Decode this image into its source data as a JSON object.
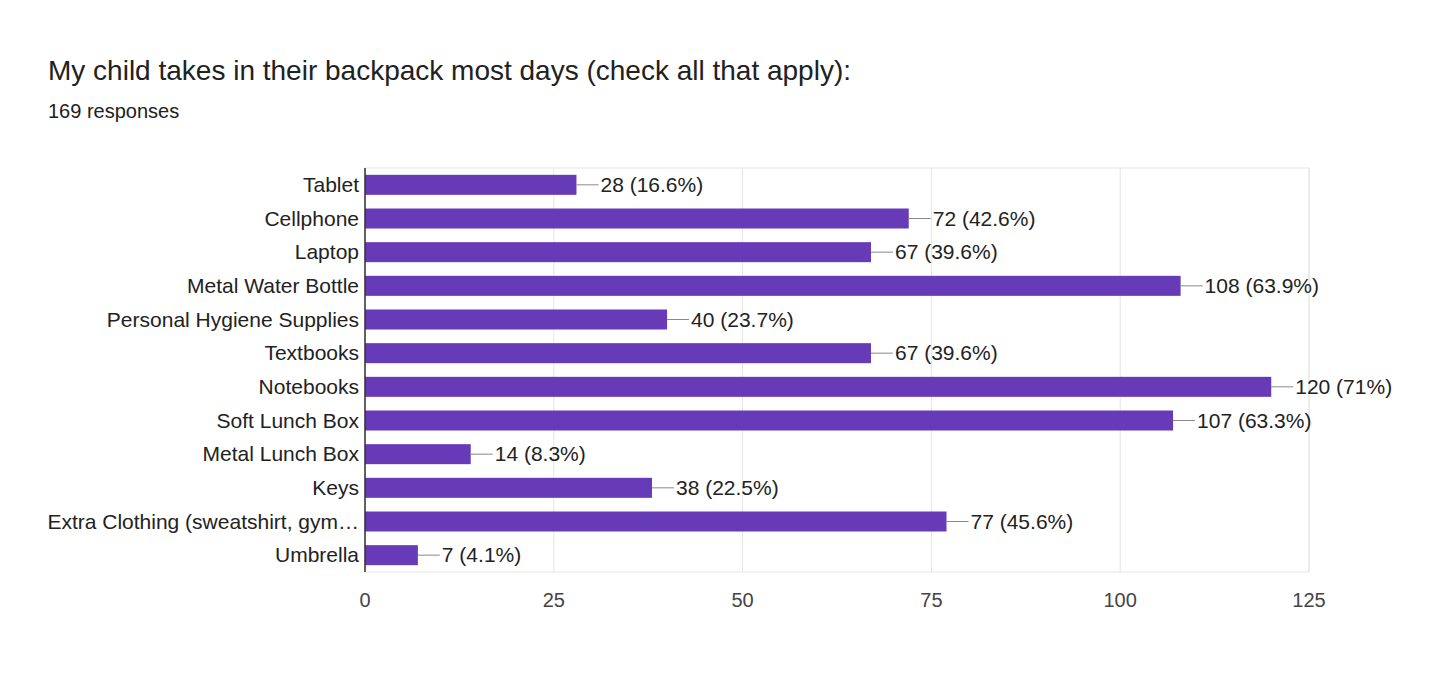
{
  "chart_data": {
    "type": "bar",
    "orientation": "horizontal",
    "title": "My child takes in their backpack most days (check all that apply):",
    "subtitle": "169 responses",
    "categories": [
      "Tablet",
      "Cellphone",
      "Laptop",
      "Metal Water Bottle",
      "Personal Hygiene Supplies",
      "Textbooks",
      "Notebooks",
      "Soft Lunch Box",
      "Metal Lunch Box",
      "Keys",
      "Extra Clothing (sweatshirt, gym…",
      "Umbrella"
    ],
    "values": [
      28,
      72,
      67,
      108,
      40,
      67,
      120,
      107,
      14,
      38,
      77,
      7
    ],
    "value_labels": [
      "28 (16.6%)",
      "72 (42.6%)",
      "67 (39.6%)",
      "108 (63.9%)",
      "40 (23.7%)",
      "67 (39.6%)",
      "120 (71%)",
      "107 (63.3%)",
      "14 (8.3%)",
      "38 (22.5%)",
      "77 (45.6%)",
      "7 (4.1%)"
    ],
    "color": "#673ab7",
    "xlim": [
      0,
      125
    ],
    "xticks": [
      0,
      25,
      50,
      75,
      100,
      125
    ],
    "grid": true,
    "data_labels": true
  }
}
